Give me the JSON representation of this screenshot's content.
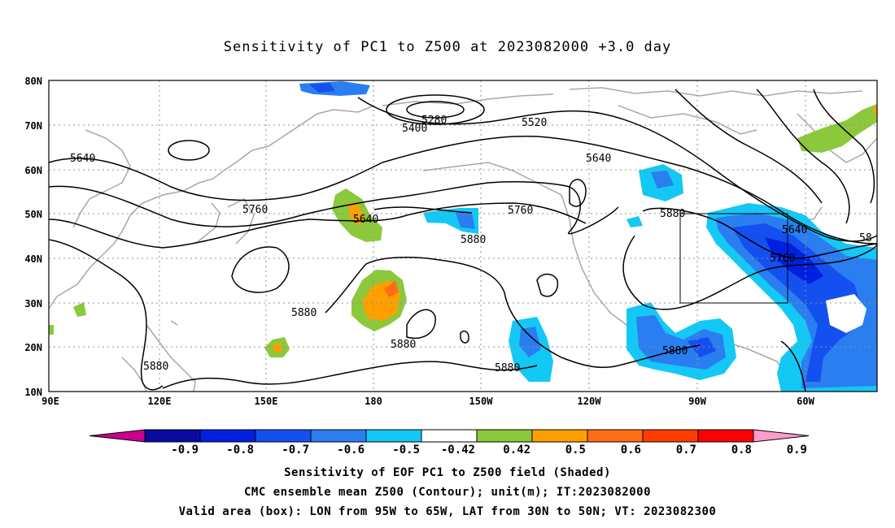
{
  "title": "Sensitivity of PC1 to Z500 at 2023082000 +3.0 day",
  "map": {
    "lat_labels": [
      "80N",
      "70N",
      "60N",
      "50N",
      "40N",
      "30N",
      "20N",
      "10N"
    ],
    "lon_labels": [
      "90E",
      "120E",
      "150E",
      "180",
      "150W",
      "120W",
      "90W",
      "60W"
    ],
    "contour_labels": [
      "5280",
      "5400",
      "5520",
      "5640",
      "5640",
      "5640",
      "5760",
      "5760",
      "5640",
      "5880",
      "5880",
      "5880",
      "5880",
      "5880",
      "5880",
      "5880",
      "5760",
      "58"
    ],
    "valid_box": "LON from 95W to 65W, LAT from 30N to 50N"
  },
  "colorbar": {
    "labels": [
      "-0.9",
      "-0.8",
      "-0.7",
      "-0.6",
      "-0.5",
      "-0.42",
      "0.42",
      "0.5",
      "0.6",
      "0.7",
      "0.8",
      "0.9"
    ],
    "colors": [
      "#c8008c",
      "#0a0aa0",
      "#0020e0",
      "#1450f0",
      "#2a7ef0",
      "#14c8f5",
      "#ffffff",
      "#8cc83c",
      "#ffa000",
      "#ff6e14",
      "#ff3c00",
      "#ff0000",
      "#ff9ccc"
    ]
  },
  "caption": {
    "line1": "Sensitivity of EOF PC1 to Z500 field (Shaded)",
    "line2": "CMC ensemble mean Z500 (Contour); unit(m); IT:2023082000",
    "line3": "Valid area (box): LON from 95W to 65W, LAT from 30N to 50N; VT: 2023082300"
  }
}
